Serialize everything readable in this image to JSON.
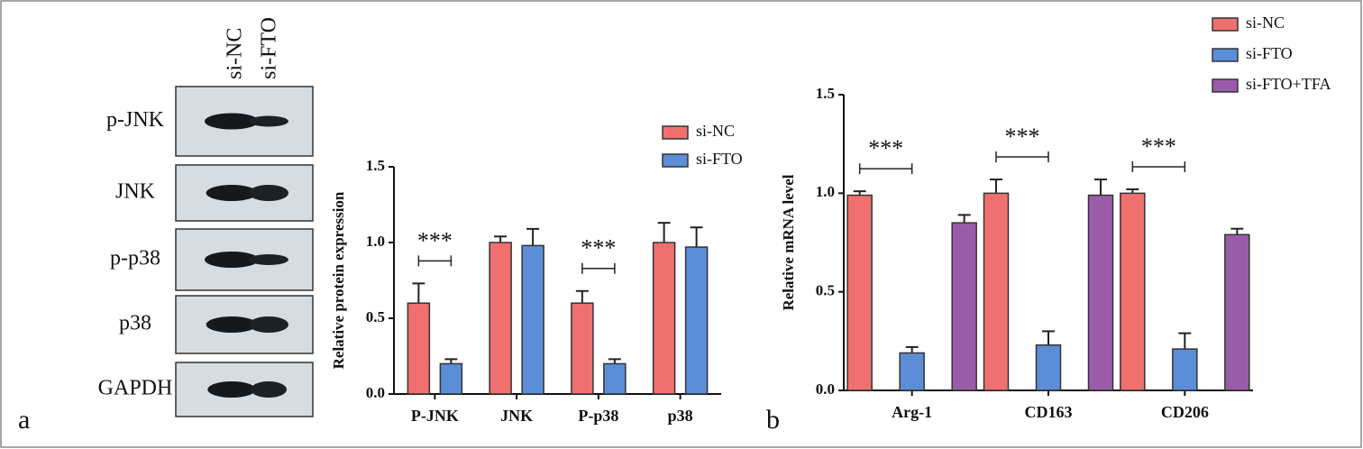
{
  "panel_labels": [
    "a",
    "b"
  ],
  "blot": {
    "columns": [
      "si-NC",
      "si-FTO"
    ],
    "rows": [
      "p-JNK",
      "JNK",
      "p-p38",
      "p38",
      "GAPDH"
    ]
  },
  "chart_data": [
    {
      "type": "bar",
      "ylabel": "Relative protein expression",
      "categories": [
        "P-JNK",
        "JNK",
        "P-p38",
        "p38"
      ],
      "series": [
        {
          "name": "si-NC",
          "color": "#f07070",
          "values": [
            0.6,
            1.0,
            0.6,
            1.0
          ],
          "errors": [
            0.13,
            0.04,
            0.08,
            0.13
          ]
        },
        {
          "name": "si-FTO",
          "color": "#5b8ed6",
          "values": [
            0.2,
            0.98,
            0.2,
            0.97
          ],
          "errors": [
            0.03,
            0.11,
            0.03,
            0.13
          ]
        }
      ],
      "ylim": [
        0,
        1.5
      ],
      "yticks": [
        {
          "value": 0,
          "label": "0.0"
        },
        0.5,
        {
          "value": 1,
          "label": "1.0"
        },
        1.5
      ],
      "annotations": [
        {
          "text": "***",
          "category": "P-JNK"
        },
        {
          "text": "***",
          "category": "P-p38"
        }
      ],
      "legend": "upper right"
    },
    {
      "type": "bar",
      "ylabel": "Relative mRNA level",
      "categories": [
        "Arg-1",
        "CD163",
        "CD206"
      ],
      "series": [
        {
          "name": "si-NC",
          "color": "#f07070",
          "values": [
            0.99,
            1.0,
            1.0
          ],
          "errors": [
            0.02,
            0.07,
            0.02
          ]
        },
        {
          "name": "si-FTO",
          "color": "#5b8ed6",
          "values": [
            0.19,
            0.23,
            0.21
          ],
          "errors": [
            0.03,
            0.07,
            0.08
          ]
        },
        {
          "name": "si-FTO+TFA",
          "color": "#9a5ca8",
          "values": [
            0.85,
            0.99,
            0.79
          ],
          "errors": [
            0.04,
            0.08,
            0.03
          ]
        }
      ],
      "ylim": [
        0,
        1.5
      ],
      "yticks": [
        {
          "value": 0,
          "label": "0.0"
        },
        0.5,
        {
          "value": 1,
          "label": "1.0"
        },
        1.5
      ],
      "annotations": [
        {
          "text": "***",
          "category": "Arg-1"
        },
        {
          "text": "***",
          "category": "CD163"
        },
        {
          "text": "***",
          "category": "CD206"
        }
      ],
      "legend": "upper right"
    }
  ]
}
